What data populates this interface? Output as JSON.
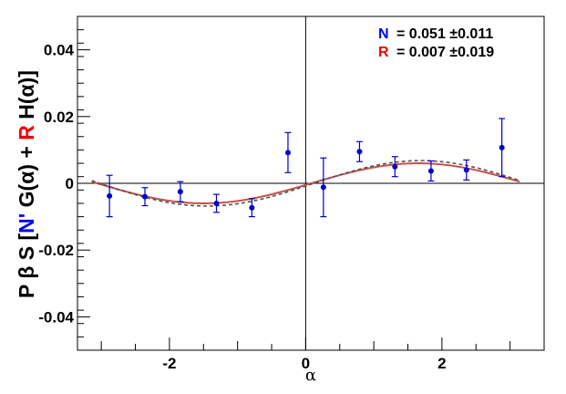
{
  "chart_data": {
    "type": "scatter",
    "title": "",
    "xlabel": "α",
    "ylabel": {
      "parts": [
        {
          "text": "P β S [",
          "color": "#000000"
        },
        {
          "text": "N'",
          "color": "#0000ee"
        },
        {
          "text": " G(α) + ",
          "color": "#000000"
        },
        {
          "text": "R",
          "color": "#ee0000"
        },
        {
          "text": " H(α)]",
          "color": "#000000"
        }
      ]
    },
    "xlim": [
      -3.35,
      3.5
    ],
    "ylim": [
      -0.05,
      0.05
    ],
    "x_ticks": [
      -2,
      0,
      2
    ],
    "x_tick_labels": [
      "-2",
      "0",
      "2"
    ],
    "y_ticks": [
      -0.04,
      -0.02,
      0,
      0.02,
      0.04
    ],
    "y_tick_labels": [
      "-0.04",
      "-0.02",
      "0",
      "0.02",
      "0.04"
    ],
    "grid": false,
    "reference_lines": {
      "x": 0,
      "y": 0
    },
    "legend": {
      "placement": "top-right",
      "entries": [
        {
          "label": "N",
          "label_color": "#0000ee",
          "value": "= 0.051 ±0.011"
        },
        {
          "label": "R",
          "label_color": "#ee0000",
          "value": "= 0.007 ±0.019"
        }
      ]
    },
    "points": {
      "color": "#0000cc",
      "x": [
        -2.88,
        -2.36,
        -1.84,
        -1.31,
        -0.79,
        -0.26,
        0.26,
        0.79,
        1.31,
        1.84,
        2.36,
        2.88
      ],
      "y": [
        -0.0038,
        -0.004,
        -0.0025,
        -0.006,
        -0.0073,
        0.0092,
        -0.0012,
        0.0095,
        0.005,
        0.0037,
        0.004,
        0.0107
      ],
      "err": [
        0.0062,
        0.0027,
        0.003,
        0.0027,
        0.0027,
        0.006,
        0.0088,
        0.003,
        0.003,
        0.003,
        0.003,
        0.0087
      ]
    },
    "curves": [
      {
        "style": "solid",
        "color": "#c8504a",
        "amplitude": 0.006,
        "phase": -0.08,
        "x_range": [
          -3.14,
          3.14
        ]
      },
      {
        "style": "dashed",
        "color": "#555555",
        "amplitude": 0.0068,
        "phase": -0.12,
        "x_range": [
          -3.14,
          3.14
        ]
      }
    ]
  }
}
